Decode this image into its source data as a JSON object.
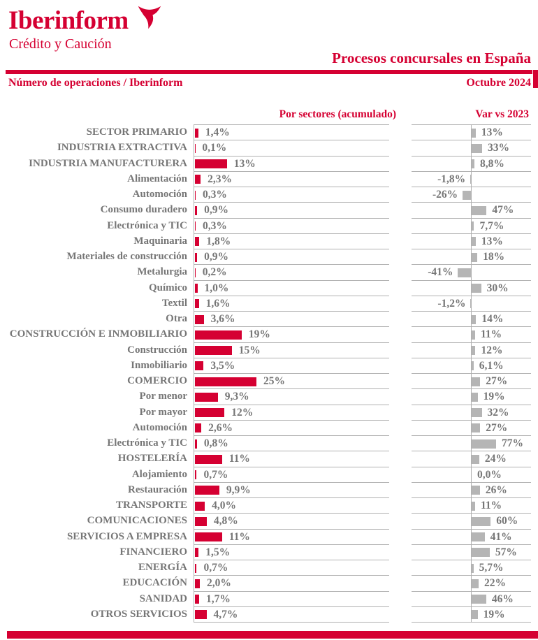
{
  "brand": {
    "name": "Iberinform",
    "tagline": "Crédito y Caución"
  },
  "header": {
    "title": "Procesos concursales en España",
    "source_label": "Número de operaciones / Iberinform",
    "date_label": "Octubre 2024"
  },
  "colors": {
    "brand_red": "#d50032",
    "bar_red": "#d50032",
    "bar_gray": "#b5b5b5",
    "text_gray": "#767676",
    "grid_gray": "#b0b0b0"
  },
  "chart_data": {
    "type": "bar",
    "orientation": "horizontal",
    "unit": "%",
    "grid": "row-separators",
    "column_headers": [
      "Por sectores (acumulado)",
      "Var vs 2023"
    ],
    "categories": [
      "SECTOR PRIMARIO",
      "INDUSTRIA EXTRACTIVA",
      "INDUSTRIA MANUFACTURERA",
      "Alimentación",
      "Automoción",
      "Consumo duradero",
      "Electrónica y TIC",
      "Maquinaria",
      "Materiales de construcción",
      "Metalurgia",
      "Químico",
      "Textil",
      "Otra",
      "CONSTRUCCIÓN E INMOBILIARIO",
      "Construcción",
      "Inmobiliario",
      "COMERCIO",
      "Por menor",
      "Por mayor",
      "Automoción",
      "Electrónica y TIC",
      "HOSTELERÍA",
      "Alojamiento",
      "Restauración",
      "TRANSPORTE",
      "COMUNICACIONES",
      "SERVICIOS A EMPRESA",
      "FINANCIERO",
      "ENERGÍA",
      "EDUCACIÓN",
      "SANIDAD",
      "OTROS SERVICIOS"
    ],
    "series": [
      {
        "name": "Por sectores (acumulado)",
        "color": "#d50032",
        "axis_max": 25,
        "values": [
          1.4,
          0.1,
          13,
          2.3,
          0.3,
          0.9,
          0.3,
          1.8,
          0.9,
          0.2,
          1.0,
          1.6,
          3.6,
          19,
          15,
          3.5,
          25,
          9.3,
          12,
          2.6,
          0.8,
          11,
          0.7,
          9.9,
          4.0,
          4.8,
          11,
          1.5,
          0.7,
          2.0,
          1.7,
          4.7
        ],
        "labels": [
          "1,4%",
          "0,1%",
          "13%",
          "2,3%",
          "0,3%",
          "0,9%",
          "0,3%",
          "1,8%",
          "0,9%",
          "0,2%",
          "1,0%",
          "1,6%",
          "3,6%",
          "19%",
          "15%",
          "3,5%",
          "25%",
          "9,3%",
          "12%",
          "2,6%",
          "0,8%",
          "11%",
          "0,7%",
          "9,9%",
          "4,0%",
          "4,8%",
          "11%",
          "1,5%",
          "0,7%",
          "2,0%",
          "1,7%",
          "4,7%"
        ]
      },
      {
        "name": "Var vs 2023",
        "color": "#b5b5b5",
        "axis_range": [
          -41,
          77
        ],
        "values": [
          13,
          33,
          8.8,
          -1.8,
          -26,
          47,
          7.7,
          13,
          18,
          -41,
          30,
          -1.2,
          14,
          11,
          12,
          6.1,
          27,
          19,
          32,
          27,
          77,
          24,
          0.0,
          26,
          11,
          60,
          41,
          57,
          5.7,
          22,
          46,
          19
        ],
        "labels": [
          "13%",
          "33%",
          "8,8%",
          "-1,8%",
          "-26%",
          "47%",
          "7,7%",
          "13%",
          "18%",
          "-41%",
          "30%",
          "-1,2%",
          "14%",
          "11%",
          "12%",
          "6,1%",
          "27%",
          "19%",
          "32%",
          "27%",
          "77%",
          "24%",
          "0,0%",
          "26%",
          "11%",
          "60%",
          "41%",
          "57%",
          "5,7%",
          "22%",
          "46%",
          "19%"
        ]
      }
    ]
  }
}
